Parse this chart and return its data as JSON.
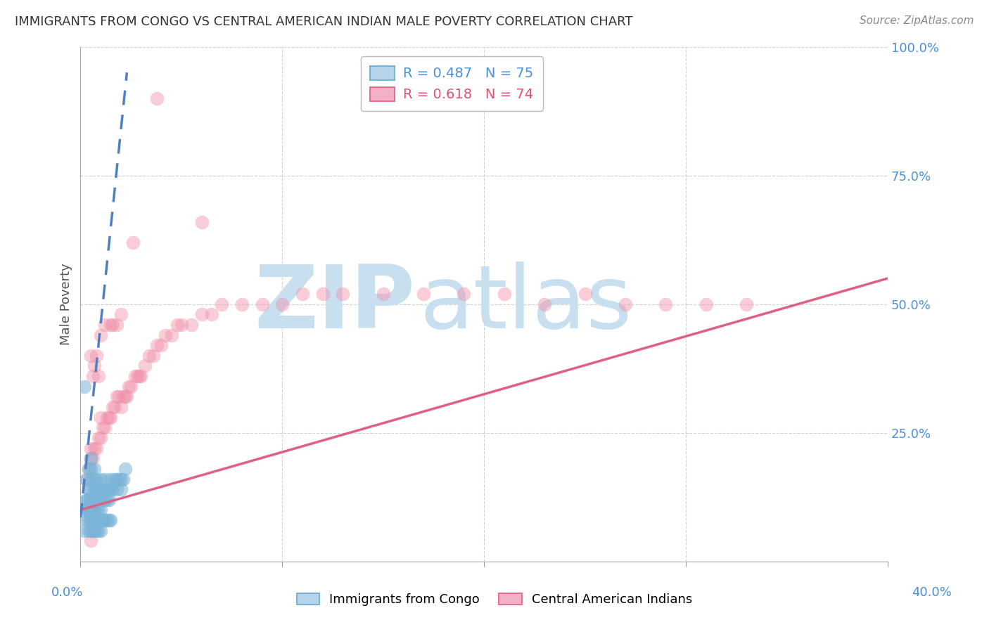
{
  "title": "IMMIGRANTS FROM CONGO VS CENTRAL AMERICAN INDIAN MALE POVERTY CORRELATION CHART",
  "source": "Source: ZipAtlas.com",
  "ylabel": "Male Poverty",
  "xlim": [
    0.0,
    0.4
  ],
  "ylim": [
    0.0,
    1.0
  ],
  "blue_color": "#7ab4d8",
  "blue_edge": "#7ab4d8",
  "pink_color": "#f090a8",
  "pink_edge": "#f090a8",
  "bg_color": "#ffffff",
  "watermark_zip": "ZIP",
  "watermark_atlas": "atlas",
  "watermark_color_zip": "#c8dff0",
  "watermark_color_atlas": "#c8dff0",
  "blue_trend_color": "#5080c0",
  "pink_trend_color": "#e06080",
  "grid_color": "#cccccc",
  "ytick_color": "#4a90d9",
  "xtick_left": "0.0%",
  "xtick_right": "40.0%",
  "legend1_label": "R = 0.487   N = 75",
  "legend2_label": "R = 0.618   N = 74",
  "legend_blue_face": "#b8d4ec",
  "legend_pink_face": "#f4b0c4",
  "blue_scatter_x": [
    0.002,
    0.003,
    0.003,
    0.004,
    0.004,
    0.004,
    0.005,
    0.005,
    0.005,
    0.005,
    0.005,
    0.005,
    0.005,
    0.006,
    0.006,
    0.006,
    0.007,
    0.007,
    0.007,
    0.007,
    0.008,
    0.008,
    0.008,
    0.008,
    0.009,
    0.009,
    0.009,
    0.01,
    0.01,
    0.01,
    0.01,
    0.011,
    0.011,
    0.012,
    0.012,
    0.013,
    0.013,
    0.014,
    0.014,
    0.015,
    0.015,
    0.016,
    0.017,
    0.018,
    0.018,
    0.019,
    0.02,
    0.02,
    0.021,
    0.022,
    0.002,
    0.003,
    0.004,
    0.004,
    0.005,
    0.005,
    0.006,
    0.006,
    0.007,
    0.007,
    0.008,
    0.008,
    0.009,
    0.01,
    0.01,
    0.011,
    0.012,
    0.013,
    0.014,
    0.015,
    0.002,
    0.003,
    0.003,
    0.004,
    0.004
  ],
  "blue_scatter_y": [
    0.34,
    0.12,
    0.16,
    0.1,
    0.14,
    0.18,
    0.08,
    0.1,
    0.12,
    0.14,
    0.16,
    0.18,
    0.2,
    0.1,
    0.12,
    0.16,
    0.08,
    0.1,
    0.14,
    0.18,
    0.1,
    0.12,
    0.14,
    0.16,
    0.1,
    0.12,
    0.14,
    0.1,
    0.12,
    0.14,
    0.16,
    0.12,
    0.14,
    0.12,
    0.16,
    0.12,
    0.14,
    0.12,
    0.14,
    0.14,
    0.16,
    0.14,
    0.16,
    0.14,
    0.16,
    0.16,
    0.14,
    0.16,
    0.16,
    0.18,
    0.06,
    0.08,
    0.06,
    0.08,
    0.06,
    0.08,
    0.06,
    0.08,
    0.06,
    0.08,
    0.06,
    0.08,
    0.06,
    0.06,
    0.08,
    0.08,
    0.08,
    0.08,
    0.08,
    0.08,
    0.1,
    0.1,
    0.12,
    0.12,
    0.1
  ],
  "pink_scatter_x": [
    0.003,
    0.004,
    0.005,
    0.005,
    0.005,
    0.006,
    0.006,
    0.007,
    0.007,
    0.008,
    0.008,
    0.009,
    0.009,
    0.01,
    0.01,
    0.01,
    0.011,
    0.012,
    0.012,
    0.013,
    0.014,
    0.015,
    0.015,
    0.016,
    0.016,
    0.017,
    0.018,
    0.018,
    0.019,
    0.02,
    0.02,
    0.021,
    0.022,
    0.023,
    0.024,
    0.025,
    0.026,
    0.027,
    0.028,
    0.029,
    0.03,
    0.032,
    0.034,
    0.036,
    0.038,
    0.04,
    0.042,
    0.045,
    0.048,
    0.05,
    0.055,
    0.06,
    0.065,
    0.07,
    0.08,
    0.09,
    0.1,
    0.11,
    0.12,
    0.13,
    0.15,
    0.17,
    0.19,
    0.21,
    0.23,
    0.25,
    0.27,
    0.29,
    0.31,
    0.33,
    0.038,
    0.005,
    0.005,
    0.06
  ],
  "pink_scatter_y": [
    0.16,
    0.18,
    0.2,
    0.4,
    0.22,
    0.2,
    0.36,
    0.22,
    0.38,
    0.22,
    0.4,
    0.24,
    0.36,
    0.24,
    0.28,
    0.44,
    0.26,
    0.26,
    0.46,
    0.28,
    0.28,
    0.28,
    0.46,
    0.3,
    0.46,
    0.3,
    0.32,
    0.46,
    0.32,
    0.3,
    0.48,
    0.32,
    0.32,
    0.32,
    0.34,
    0.34,
    0.62,
    0.36,
    0.36,
    0.36,
    0.36,
    0.38,
    0.4,
    0.4,
    0.42,
    0.42,
    0.44,
    0.44,
    0.46,
    0.46,
    0.46,
    0.48,
    0.48,
    0.5,
    0.5,
    0.5,
    0.5,
    0.52,
    0.52,
    0.52,
    0.52,
    0.52,
    0.52,
    0.52,
    0.5,
    0.52,
    0.5,
    0.5,
    0.5,
    0.5,
    0.9,
    0.04,
    0.1,
    0.66
  ],
  "pink_trend_x0": 0.0,
  "pink_trend_y0": 0.1,
  "pink_trend_x1": 0.4,
  "pink_trend_y1": 0.55,
  "blue_trend_x0": 0.0,
  "blue_trend_y0": 0.085,
  "blue_trend_x1": 0.023,
  "blue_trend_y1": 0.95
}
